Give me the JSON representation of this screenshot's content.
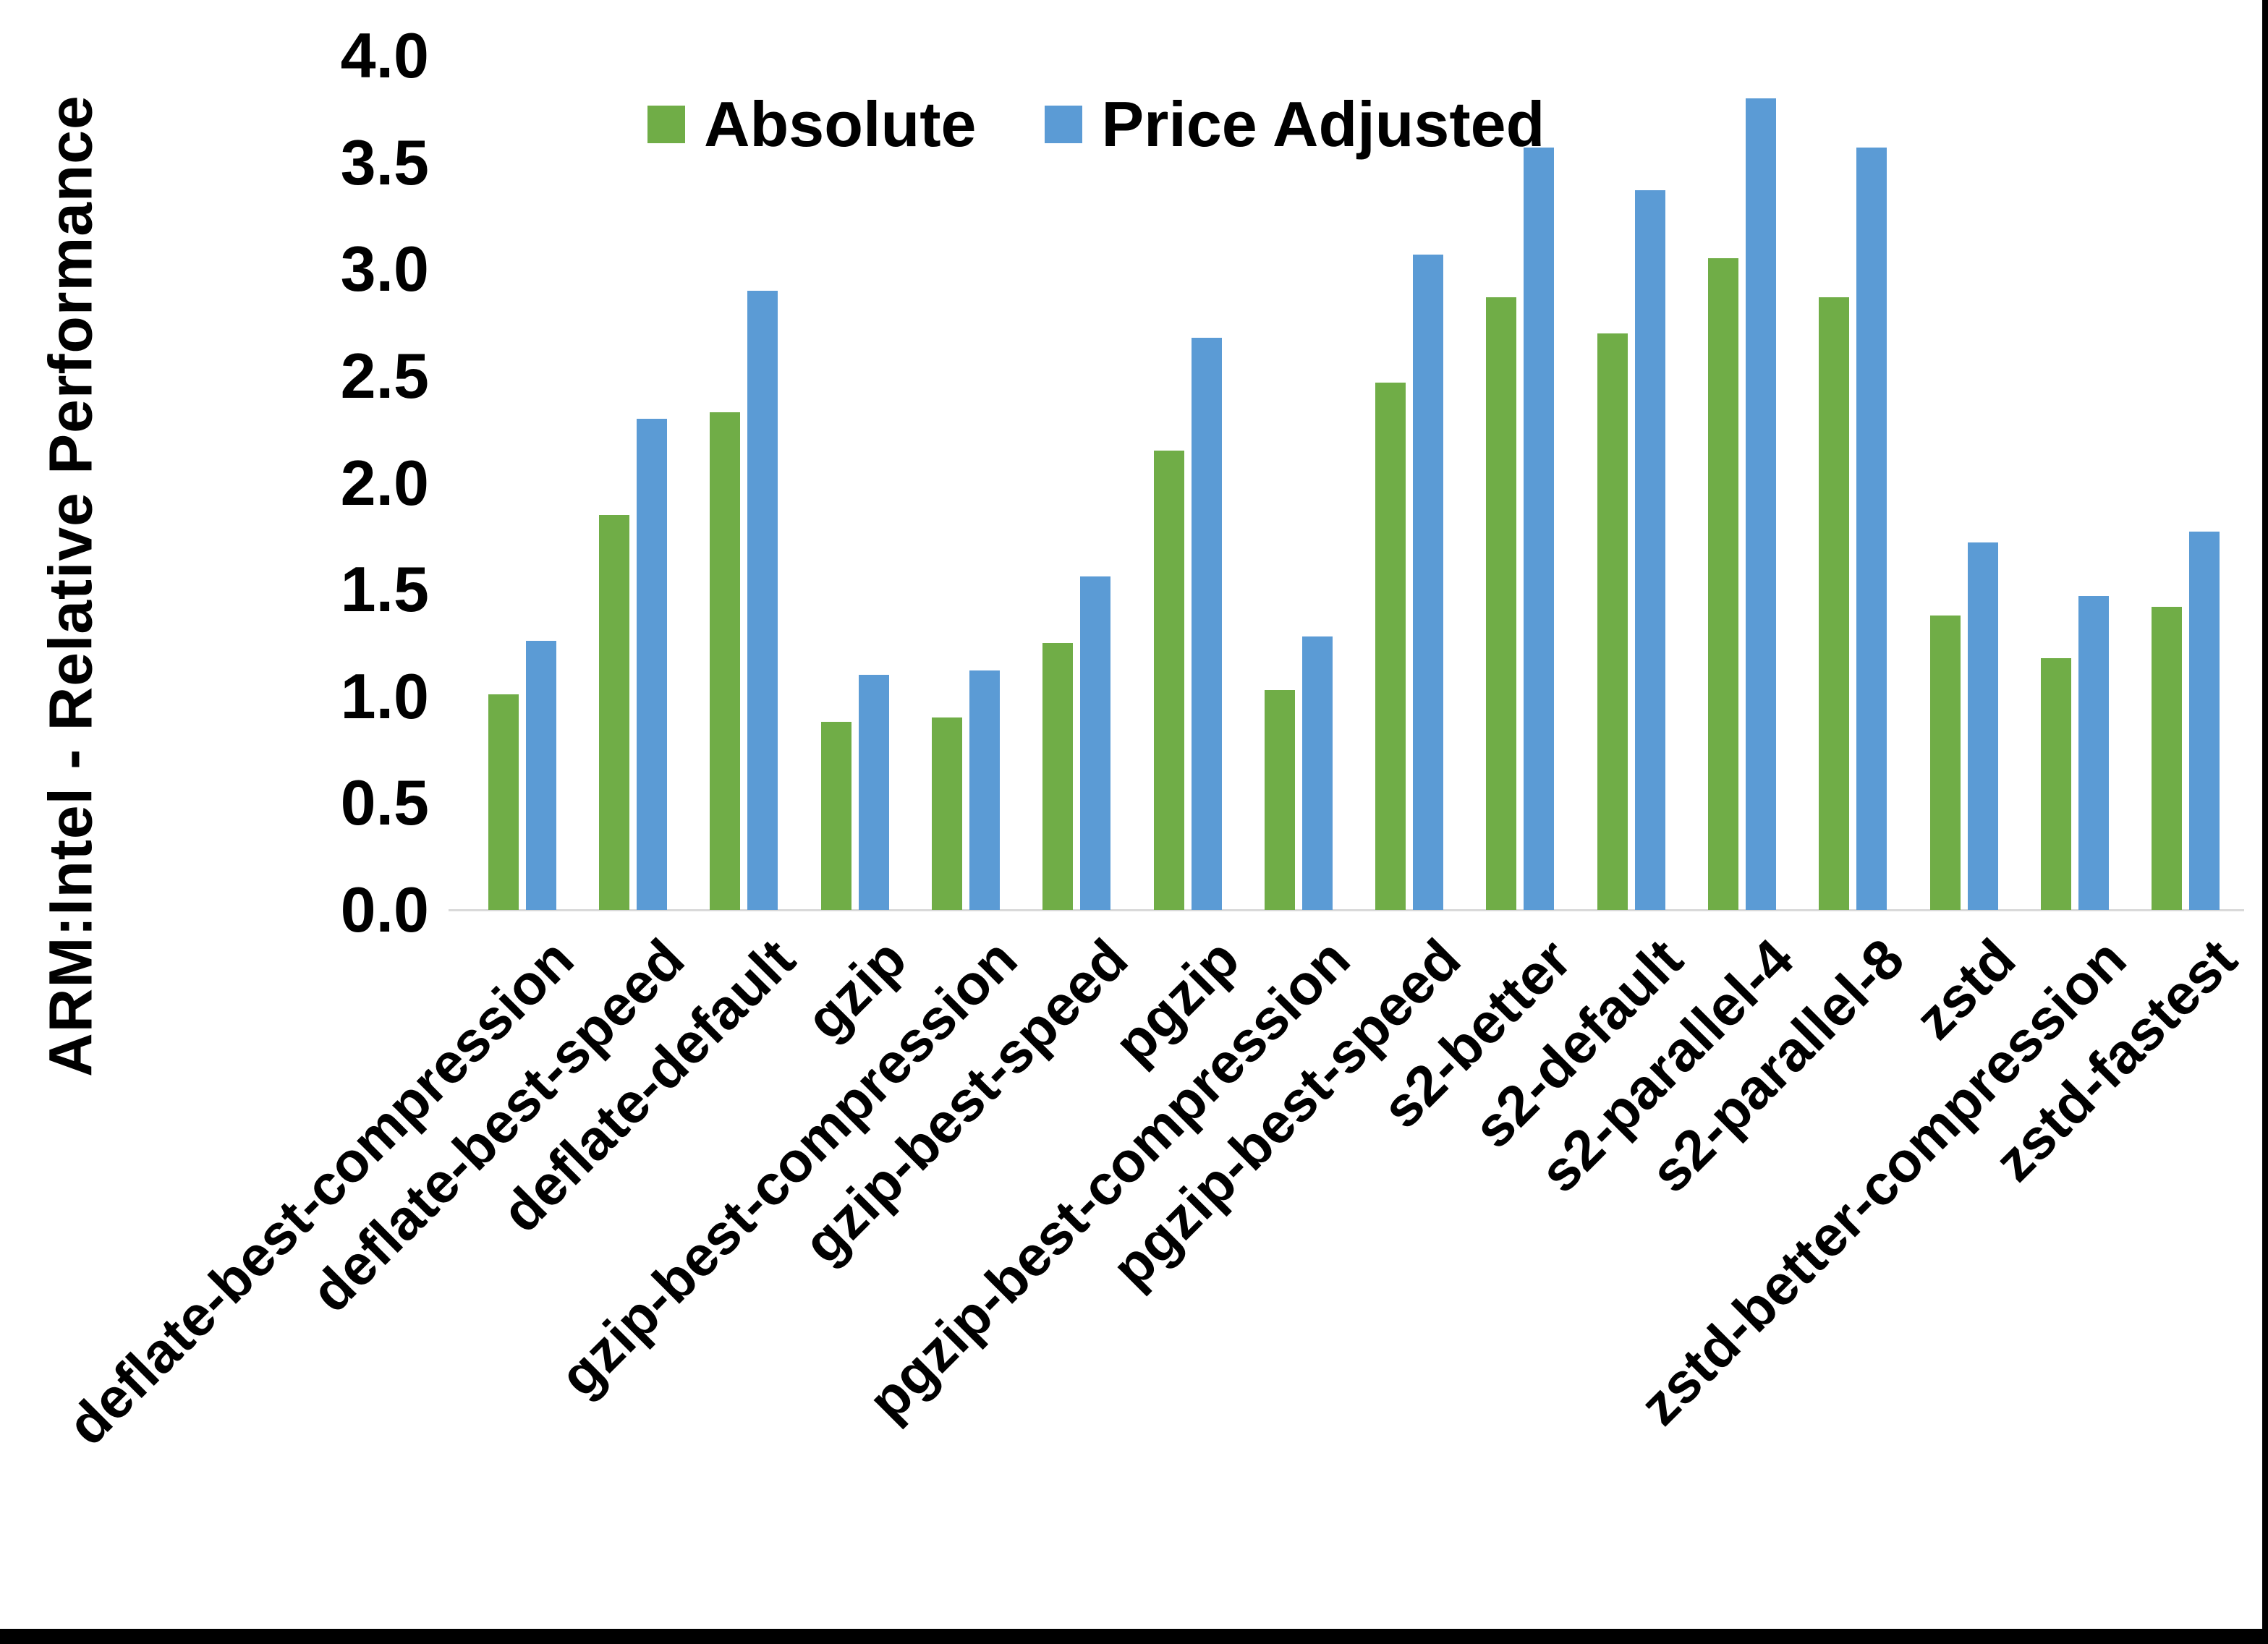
{
  "chart_data": {
    "type": "bar",
    "title": "",
    "y_axis_title": "ARM:Intel - Relative Performance",
    "categories": [
      "deflate-best-compression",
      "deflate-best-speed",
      "deflate-default",
      "gzip",
      "gzip-best-compression",
      "gzip-best-speed",
      "pgzip",
      "pgzip-best-compression",
      "pgzip-best-speed",
      "s2-better",
      "s2-default",
      "s2-parallel-4",
      "s2-parallel-8",
      "zstd",
      "zstd-better-compression",
      "zstd-fastest"
    ],
    "series": [
      {
        "name": "Absolute",
        "color": "#70AD47",
        "values": [
          1.01,
          1.85,
          2.33,
          0.88,
          0.9,
          1.25,
          2.15,
          1.03,
          2.47,
          2.87,
          2.7,
          3.05,
          2.87,
          1.38,
          1.18,
          1.42
        ]
      },
      {
        "name": "Price Adjusted",
        "color": "#5B9BD5",
        "values": [
          1.26,
          2.3,
          2.9,
          1.1,
          1.12,
          1.56,
          2.68,
          1.28,
          3.07,
          3.57,
          3.37,
          3.8,
          3.57,
          1.72,
          1.47,
          1.77
        ]
      }
    ],
    "y_ticks": [
      "0.0",
      "0.5",
      "1.0",
      "1.5",
      "2.0",
      "2.5",
      "3.0",
      "3.5",
      "4.0"
    ],
    "ylim": [
      0.0,
      4.0
    ],
    "grid": false,
    "legend_position": "top-center",
    "x_label_rotation_deg": 45,
    "axis_line_color": "#d9d9d9"
  }
}
